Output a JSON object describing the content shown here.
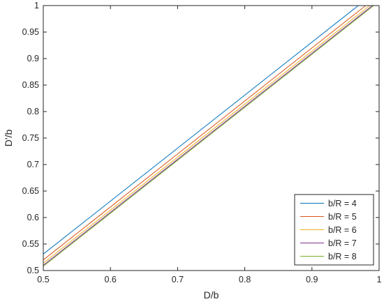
{
  "chart_data": {
    "type": "line",
    "title": "",
    "xlabel": "D/b",
    "ylabel": "D'/b",
    "xlim": [
      0.5,
      1
    ],
    "ylim": [
      0.5,
      1
    ],
    "xticks": [
      "0.5",
      "0.6",
      "0.7",
      "0.8",
      "0.9",
      "1"
    ],
    "yticks": [
      "0.5",
      "0.55",
      "0.6",
      "0.65",
      "0.7",
      "0.75",
      "0.8",
      "0.85",
      "0.9",
      "0.95",
      "1"
    ],
    "grid": false,
    "legend_position": "bottom-right",
    "series": [
      {
        "name": "b/R = 4",
        "color": "#0072BD",
        "x": [
          0.5,
          0.969
        ],
        "y": [
          0.531,
          1.0
        ]
      },
      {
        "name": "b/R = 5",
        "color": "#D95319",
        "x": [
          0.5,
          0.98
        ],
        "y": [
          0.52,
          1.0
        ]
      },
      {
        "name": "b/R = 6",
        "color": "#EDB120",
        "x": [
          0.5,
          0.986
        ],
        "y": [
          0.514,
          1.0
        ]
      },
      {
        "name": "b/R = 7",
        "color": "#7E2F8E",
        "x": [
          0.5,
          0.99
        ],
        "y": [
          0.51,
          1.0
        ]
      },
      {
        "name": "b/R = 8",
        "color": "#77AC30",
        "x": [
          0.5,
          0.992
        ],
        "y": [
          0.508,
          1.0
        ]
      }
    ]
  }
}
